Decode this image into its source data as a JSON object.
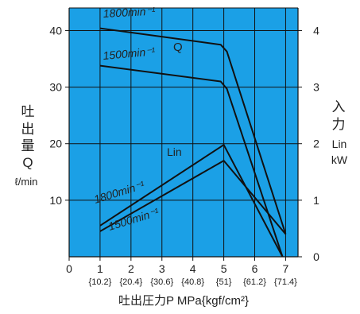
{
  "chart_data": {
    "type": "line",
    "left_axis": {
      "label_lines": [
        "吐",
        "出",
        "量",
        "Q"
      ],
      "unit": "ℓ/min",
      "ylim": [
        0,
        44
      ],
      "ticks": [
        10,
        20,
        30,
        40
      ]
    },
    "right_axis": {
      "label_lines": [
        "入",
        "力"
      ],
      "sub_label_lines": [
        "Lin",
        "kW"
      ],
      "ylim": [
        0,
        4.4
      ],
      "ticks": [
        0,
        1,
        2,
        3,
        4
      ]
    },
    "x_axis": {
      "label": "吐出圧力P  MPa{kgf/cm²}",
      "xlim": [
        0,
        7.4
      ],
      "ticks": [
        0,
        1,
        2,
        3,
        4,
        5,
        6,
        7
      ],
      "secondary_ticks": [
        {
          "x": 1,
          "label": "{10.2}"
        },
        {
          "x": 2,
          "label": "{20.4}"
        },
        {
          "x": 3,
          "label": "{30.6}"
        },
        {
          "x": 4,
          "label": "{40.8}"
        },
        {
          "x": 5,
          "label": "{51}"
        },
        {
          "x": 6,
          "label": "{61.2}"
        },
        {
          "x": 7,
          "label": "{71.4}"
        }
      ]
    },
    "groups": [
      {
        "label": "Q",
        "axis": "left"
      },
      {
        "label": "Lin",
        "axis": "right"
      }
    ],
    "series": [
      {
        "name": "1800min⁻¹",
        "group": "Q",
        "axis": "left",
        "points": [
          [
            1.0,
            40.4
          ],
          [
            4.9,
            37.5
          ],
          [
            5.1,
            36.3
          ],
          [
            7.0,
            4.0
          ]
        ]
      },
      {
        "name": "1500min⁻¹",
        "group": "Q",
        "axis": "left",
        "points": [
          [
            1.0,
            33.8
          ],
          [
            4.9,
            31.0
          ],
          [
            5.1,
            29.7
          ],
          [
            6.9,
            0.0
          ]
        ]
      },
      {
        "name": "1800min⁻¹",
        "group": "Lin",
        "axis": "right",
        "points": [
          [
            1.0,
            0.55
          ],
          [
            5.0,
            1.98
          ],
          [
            6.9,
            0.0
          ]
        ]
      },
      {
        "name": "1500min⁻¹",
        "group": "Lin",
        "axis": "right",
        "points": [
          [
            1.0,
            0.45
          ],
          [
            5.0,
            1.7
          ],
          [
            7.0,
            0.4
          ]
        ]
      }
    ],
    "annotations": [
      {
        "text": "1800min⁻¹",
        "target": "Q 1800"
      },
      {
        "text": "1500min⁻¹",
        "target": "Q 1500"
      },
      {
        "text": "Q",
        "target": "Q group"
      },
      {
        "text": "Lin",
        "target": "Lin group"
      },
      {
        "text": "1800min⁻¹",
        "target": "Lin 1800"
      },
      {
        "text": "1500min⁻¹",
        "target": "Lin 1500"
      }
    ],
    "grid": true,
    "colors": {
      "plot_background": "#1ba0e6",
      "grid": "#111111",
      "lines": "#111111",
      "text": "#222222"
    }
  }
}
